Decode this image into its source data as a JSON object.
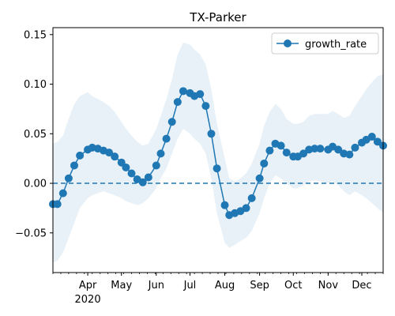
{
  "chart_data": {
    "type": "line",
    "title": "TX-Parker",
    "xlabel": "",
    "ylabel": "",
    "x_start": "2020-03-01",
    "x_end": "2020-12-20",
    "xlim": [
      "2020-03-01",
      "2020-12-20"
    ],
    "ylim": [
      -0.09,
      0.157
    ],
    "x_ticks": [
      {
        "date": "2020-04-01",
        "label": "Apr",
        "sublabel": "2020"
      },
      {
        "date": "2020-05-01",
        "label": "May",
        "sublabel": ""
      },
      {
        "date": "2020-06-01",
        "label": "Jun",
        "sublabel": ""
      },
      {
        "date": "2020-07-01",
        "label": "Jul",
        "sublabel": ""
      },
      {
        "date": "2020-08-01",
        "label": "Aug",
        "sublabel": ""
      },
      {
        "date": "2020-09-01",
        "label": "Sep",
        "sublabel": ""
      },
      {
        "date": "2020-10-01",
        "label": "Oct",
        "sublabel": ""
      },
      {
        "date": "2020-11-01",
        "label": "Nov",
        "sublabel": ""
      },
      {
        "date": "2020-12-01",
        "label": "Dec",
        "sublabel": ""
      }
    ],
    "y_ticks": [
      {
        "value": -0.05,
        "label": "−0.05"
      },
      {
        "value": 0.0,
        "label": "0.00"
      },
      {
        "value": 0.05,
        "label": "0.05"
      },
      {
        "value": 0.1,
        "label": "0.10"
      },
      {
        "value": 0.15,
        "label": "0.15"
      }
    ],
    "grid": false,
    "legend": {
      "position": "top-right",
      "entries": [
        "growth_rate"
      ]
    },
    "reference_line": {
      "y": 0.0,
      "style": "dashed"
    },
    "series": [
      {
        "name": "growth_rate",
        "color": "#1f77b4",
        "band_color": "#1f77b4",
        "points": [
          {
            "x": "2020-03-01",
            "y": -0.021,
            "lo": -0.08,
            "hi": 0.04
          },
          {
            "x": "2020-03-05",
            "y": -0.021,
            "lo": -0.078,
            "hi": 0.042
          },
          {
            "x": "2020-03-10",
            "y": -0.01,
            "lo": -0.07,
            "hi": 0.048
          },
          {
            "x": "2020-03-15",
            "y": 0.005,
            "lo": -0.055,
            "hi": 0.065
          },
          {
            "x": "2020-03-20",
            "y": 0.018,
            "lo": -0.04,
            "hi": 0.08
          },
          {
            "x": "2020-03-25",
            "y": 0.028,
            "lo": -0.025,
            "hi": 0.088
          },
          {
            "x": "2020-04-01",
            "y": 0.034,
            "lo": -0.015,
            "hi": 0.092
          },
          {
            "x": "2020-04-05",
            "y": 0.036,
            "lo": -0.012,
            "hi": 0.088
          },
          {
            "x": "2020-04-10",
            "y": 0.035,
            "lo": -0.01,
            "hi": 0.085
          },
          {
            "x": "2020-04-15",
            "y": 0.033,
            "lo": -0.008,
            "hi": 0.082
          },
          {
            "x": "2020-04-20",
            "y": 0.031,
            "lo": -0.01,
            "hi": 0.078
          },
          {
            "x": "2020-04-25",
            "y": 0.027,
            "lo": -0.012,
            "hi": 0.072
          },
          {
            "x": "2020-05-01",
            "y": 0.021,
            "lo": -0.015,
            "hi": 0.062
          },
          {
            "x": "2020-05-05",
            "y": 0.016,
            "lo": -0.018,
            "hi": 0.055
          },
          {
            "x": "2020-05-10",
            "y": 0.01,
            "lo": -0.02,
            "hi": 0.048
          },
          {
            "x": "2020-05-15",
            "y": 0.004,
            "lo": -0.022,
            "hi": 0.042
          },
          {
            "x": "2020-05-20",
            "y": 0.001,
            "lo": -0.02,
            "hi": 0.038
          },
          {
            "x": "2020-05-25",
            "y": 0.006,
            "lo": -0.015,
            "hi": 0.04
          },
          {
            "x": "2020-06-01",
            "y": 0.018,
            "lo": -0.005,
            "hi": 0.055
          },
          {
            "x": "2020-06-05",
            "y": 0.03,
            "lo": 0.005,
            "hi": 0.068
          },
          {
            "x": "2020-06-10",
            "y": 0.045,
            "lo": 0.015,
            "hi": 0.085
          },
          {
            "x": "2020-06-15",
            "y": 0.062,
            "lo": 0.03,
            "hi": 0.105
          },
          {
            "x": "2020-06-20",
            "y": 0.082,
            "lo": 0.045,
            "hi": 0.13
          },
          {
            "x": "2020-06-25",
            "y": 0.093,
            "lo": 0.055,
            "hi": 0.142
          },
          {
            "x": "2020-07-01",
            "y": 0.091,
            "lo": 0.05,
            "hi": 0.14
          },
          {
            "x": "2020-07-05",
            "y": 0.088,
            "lo": 0.045,
            "hi": 0.135
          },
          {
            "x": "2020-07-10",
            "y": 0.09,
            "lo": 0.04,
            "hi": 0.13
          },
          {
            "x": "2020-07-15",
            "y": 0.078,
            "lo": 0.03,
            "hi": 0.12
          },
          {
            "x": "2020-07-20",
            "y": 0.05,
            "lo": 0.005,
            "hi": 0.095
          },
          {
            "x": "2020-07-25",
            "y": 0.015,
            "lo": -0.03,
            "hi": 0.06
          },
          {
            "x": "2020-08-01",
            "y": -0.022,
            "lo": -0.06,
            "hi": 0.025
          },
          {
            "x": "2020-08-05",
            "y": -0.032,
            "lo": -0.065,
            "hi": 0.005
          },
          {
            "x": "2020-08-10",
            "y": -0.03,
            "lo": -0.062,
            "hi": 0.002
          },
          {
            "x": "2020-08-15",
            "y": -0.028,
            "lo": -0.058,
            "hi": 0.005
          },
          {
            "x": "2020-08-20",
            "y": -0.025,
            "lo": -0.055,
            "hi": 0.01
          },
          {
            "x": "2020-08-25",
            "y": -0.015,
            "lo": -0.048,
            "hi": 0.02
          },
          {
            "x": "2020-09-01",
            "y": 0.005,
            "lo": -0.03,
            "hi": 0.04
          },
          {
            "x": "2020-09-05",
            "y": 0.02,
            "lo": -0.015,
            "hi": 0.058
          },
          {
            "x": "2020-09-10",
            "y": 0.033,
            "lo": 0.0,
            "hi": 0.072
          },
          {
            "x": "2020-09-15",
            "y": 0.04,
            "lo": 0.008,
            "hi": 0.08
          },
          {
            "x": "2020-09-20",
            "y": 0.038,
            "lo": 0.005,
            "hi": 0.075
          },
          {
            "x": "2020-09-25",
            "y": 0.031,
            "lo": 0.0,
            "hi": 0.065
          },
          {
            "x": "2020-10-01",
            "y": 0.027,
            "lo": -0.005,
            "hi": 0.06
          },
          {
            "x": "2020-10-05",
            "y": 0.027,
            "lo": -0.005,
            "hi": 0.06
          },
          {
            "x": "2020-10-10",
            "y": 0.03,
            "lo": -0.002,
            "hi": 0.062
          },
          {
            "x": "2020-10-15",
            "y": 0.034,
            "lo": 0.002,
            "hi": 0.068
          },
          {
            "x": "2020-10-20",
            "y": 0.035,
            "lo": 0.003,
            "hi": 0.07
          },
          {
            "x": "2020-10-25",
            "y": 0.035,
            "lo": 0.002,
            "hi": 0.07
          },
          {
            "x": "2020-11-01",
            "y": 0.034,
            "lo": 0.0,
            "hi": 0.07
          },
          {
            "x": "2020-11-05",
            "y": 0.037,
            "lo": 0.002,
            "hi": 0.073
          },
          {
            "x": "2020-11-10",
            "y": 0.034,
            "lo": -0.002,
            "hi": 0.07
          },
          {
            "x": "2020-11-15",
            "y": 0.03,
            "lo": -0.008,
            "hi": 0.066
          },
          {
            "x": "2020-11-20",
            "y": 0.029,
            "lo": -0.012,
            "hi": 0.068
          },
          {
            "x": "2020-11-25",
            "y": 0.036,
            "lo": -0.008,
            "hi": 0.078
          },
          {
            "x": "2020-12-01",
            "y": 0.041,
            "lo": -0.012,
            "hi": 0.088
          },
          {
            "x": "2020-12-05",
            "y": 0.044,
            "lo": -0.015,
            "hi": 0.095
          },
          {
            "x": "2020-12-10",
            "y": 0.047,
            "lo": -0.02,
            "hi": 0.102
          },
          {
            "x": "2020-12-15",
            "y": 0.042,
            "lo": -0.025,
            "hi": 0.108
          },
          {
            "x": "2020-12-20",
            "y": 0.038,
            "lo": -0.03,
            "hi": 0.11
          }
        ]
      }
    ]
  }
}
